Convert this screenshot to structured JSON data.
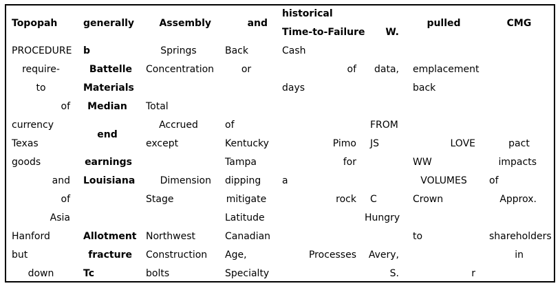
{
  "header": {
    "c0": "Topopah",
    "c1": "generally",
    "c2": "Assembly",
    "c3": "and",
    "c4a": "historical",
    "c4b": "Time-to-Failure",
    "c5": "W.",
    "c6": "pulled",
    "c7": "CMG"
  },
  "col0": [
    "PROCEDURE",
    "require-",
    "to",
    "of",
    "currency",
    "Texas",
    "goods",
    "and",
    "of",
    "Asia",
    "Hanford",
    "but",
    "down"
  ],
  "col1": {
    "b": "b",
    "battelle": "Battelle",
    "materials": "Materials",
    "median": "Median",
    "end": "end",
    "earnings": "earnings",
    "louisiana": "Louisiana",
    "allotment": "Allotment",
    "fracture": "fracture",
    "tc": "Tc"
  },
  "col2": {
    "springs": "Springs",
    "concentration": "Concentration",
    "total": "Total",
    "accrued": "Accrued",
    "except": "except",
    "dimension": "Dimension",
    "stage": "Stage",
    "northwest": "Northwest",
    "construction": "Construction",
    "bolts": "bolts"
  },
  "col3": {
    "back": "Back",
    "or": "or",
    "of": "of",
    "kentucky": "Kentucky",
    "tampa": "Tampa",
    "dipping": "dipping",
    "mitigate": "mitigate",
    "latitude": "Latitude",
    "canadian": "Canadian",
    "age": "Age,",
    "specialty": "Specialty"
  },
  "col4": {
    "cash": "Cash",
    "of": "of",
    "days": "days",
    "pimo": "Pimo",
    "for": "for",
    "a": "a",
    "rock": "rock",
    "processes": "Processes"
  },
  "col5": {
    "data": "data,",
    "from": "FROM",
    "js": "JS",
    "c": "C",
    "hungry": "Hungry",
    "avery": "Avery,",
    "s": "S."
  },
  "col6": {
    "emplacement": "emplacement",
    "back": "back",
    "love": "LOVE",
    "ww": "WW",
    "volumes": "VOLUMES",
    "crown": "Crown",
    "to": "to",
    "r": "r"
  },
  "col7": {
    "pact": "pact",
    "impacts": "impacts",
    "of": "of",
    "approx": "Approx.",
    "shareholders": "shareholders",
    "in": "in"
  }
}
